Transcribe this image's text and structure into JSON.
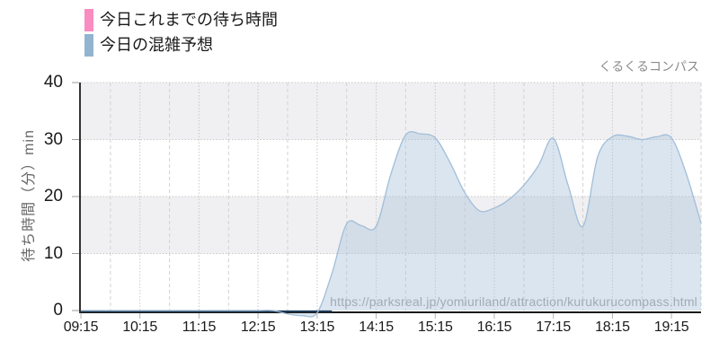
{
  "brand": "くるくるコンパス",
  "watermark": "https://parksreal.jp/yomiuriland/attraction/kurukurucompass.html",
  "legend": {
    "items": [
      {
        "label": "今日これまでの待ち時間",
        "color": "#f98cc0"
      },
      {
        "label": "今日の混雑予想",
        "color": "#92b4d0"
      }
    ]
  },
  "colors": {
    "band_gray": "#f0f0f2",
    "grid_dot": "#c8c8c8",
    "grid_dash": "#d2d2d2",
    "axis": "#1a1a1a",
    "y_axis_line": "#333333",
    "tick": "#9b9b9b",
    "text": "#1a1a1a",
    "muted": "#8b8b8b"
  },
  "chart_data": {
    "type": "area",
    "title": "",
    "x_axis": {
      "start": "09:15",
      "end": "19:45",
      "tick_labels": [
        "09:15",
        "10:15",
        "11:15",
        "12:15",
        "13:15",
        "14:15",
        "15:15",
        "16:15",
        "17:15",
        "18:15",
        "19:15"
      ],
      "minor_grid_minutes": 30
    },
    "y_axis": {
      "label": "待ち時間（分）min",
      "ticks": [
        0,
        10,
        20,
        30,
        40
      ],
      "range": [
        0,
        40
      ]
    },
    "legend_position": "top-left",
    "grid": true,
    "series": [
      {
        "name": "今日これまでの待ち時間",
        "type": "line",
        "legend_color": "#f98cc0",
        "line_color": "#1d3a57",
        "points": [
          [
            "09:15",
            0
          ],
          [
            "13:30",
            0
          ]
        ]
      },
      {
        "name": "今日の混雑予想",
        "type": "area",
        "legend_color": "#92b4d0",
        "line_color": "#a2bed8",
        "fill_color": "rgba(174,198,220,0.45)",
        "points": [
          [
            "09:15",
            0
          ],
          [
            "09:30",
            0
          ],
          [
            "09:45",
            0
          ],
          [
            "10:00",
            0
          ],
          [
            "10:15",
            0
          ],
          [
            "10:30",
            0
          ],
          [
            "10:45",
            0
          ],
          [
            "11:00",
            0
          ],
          [
            "11:15",
            0
          ],
          [
            "11:30",
            0
          ],
          [
            "11:45",
            0
          ],
          [
            "12:00",
            0
          ],
          [
            "12:15",
            0
          ],
          [
            "12:30",
            0
          ],
          [
            "12:45",
            -0.6
          ],
          [
            "13:00",
            -0.9
          ],
          [
            "13:15",
            -0.4
          ],
          [
            "13:30",
            6.5
          ],
          [
            "13:45",
            15.2
          ],
          [
            "14:00",
            14.9
          ],
          [
            "14:15",
            14.8
          ],
          [
            "14:30",
            24
          ],
          [
            "14:45",
            30.8
          ],
          [
            "15:00",
            31
          ],
          [
            "15:15",
            30.3
          ],
          [
            "15:30",
            26
          ],
          [
            "15:45",
            20.7
          ],
          [
            "16:00",
            17.5
          ],
          [
            "16:15",
            18
          ],
          [
            "16:30",
            19.5
          ],
          [
            "16:45",
            22
          ],
          [
            "17:00",
            25.5
          ],
          [
            "17:15",
            30.2
          ],
          [
            "17:30",
            22
          ],
          [
            "17:45",
            14.8
          ],
          [
            "18:00",
            27
          ],
          [
            "18:15",
            30.5
          ],
          [
            "18:30",
            30.6
          ],
          [
            "18:45",
            30.0
          ],
          [
            "19:00",
            30.5
          ],
          [
            "19:15",
            30.3
          ],
          [
            "19:30",
            24
          ],
          [
            "19:45",
            15.3
          ]
        ]
      }
    ]
  }
}
